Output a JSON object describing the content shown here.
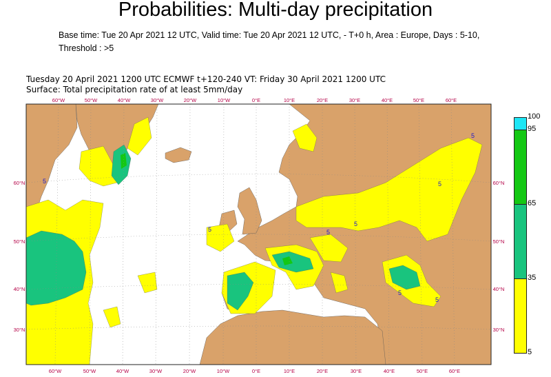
{
  "title": "Probabilities: Multi-day precipitation",
  "subtitle": "Base time: Tue 20 Apr 2021 12 UTC, Valid time: Tue 20 Apr 2021 12 UTC, - T+0 h, Area : Europe, Days : 5-10, Threshold : >5",
  "map_header": {
    "line1": "Tuesday 20 April 2021 1200 UTC  ECMWF  t+120-240  VT: Friday 30 April 2021 1200 UTC",
    "line2": "Surface: Total precipitation rate of at least 5mm/day"
  },
  "longitude_labels": [
    "60°W",
    "50°W",
    "40°W",
    "30°W",
    "20°W",
    "10°W",
    "0°E",
    "10°E",
    "20°E",
    "30°E",
    "40°E",
    "50°E",
    "60°E"
  ],
  "latitude_labels": [
    "60°N",
    "50°N",
    "40°N",
    "30°N"
  ],
  "contour_label": "5",
  "colors": {
    "land": "#d9a26a",
    "sea": "#ffffff",
    "prob_5_35": "#ffff00",
    "prob_35_65": "#19c47e",
    "prob_65_95": "#14c814",
    "prob_95_100": "#1ee6f5",
    "grid_label": "#b40046"
  },
  "colorbar": {
    "labels": [
      "100",
      "95",
      "65",
      "35",
      "5"
    ],
    "bands": [
      {
        "from": 95,
        "to": 100,
        "color": "#1ee6f5"
      },
      {
        "from": 65,
        "to": 95,
        "color": "#14c814"
      },
      {
        "from": 35,
        "to": 65,
        "color": "#19c47e"
      },
      {
        "from": 5,
        "to": 35,
        "color": "#ffff00"
      }
    ]
  }
}
